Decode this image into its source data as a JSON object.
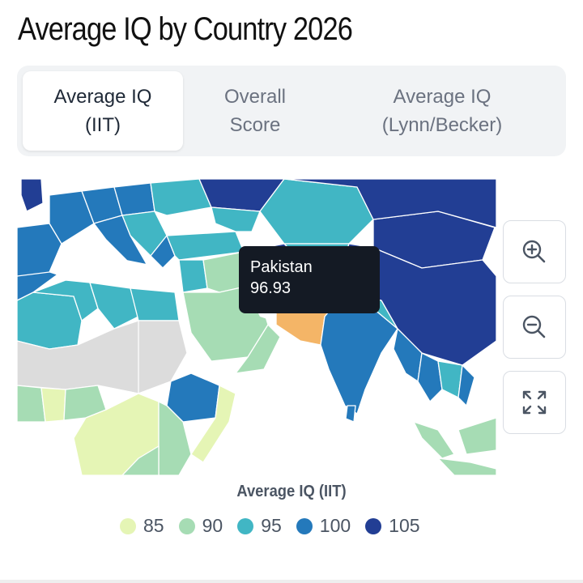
{
  "page": {
    "title": "Average IQ by Country 2026"
  },
  "tabs": [
    {
      "label": "Average IQ\n(IIT)",
      "active": true
    },
    {
      "label": "Overall\nScore",
      "active": false
    },
    {
      "label": "Average IQ\n(Lynn/Becker)",
      "active": false
    }
  ],
  "map": {
    "tooltip": {
      "country": "Pakistan",
      "value": "96.93"
    },
    "highlight_color": "#f4b567",
    "no_data_color": "#dcdcdc",
    "controls": [
      "zoom-in-icon",
      "zoom-out-icon",
      "fullscreen-icon"
    ]
  },
  "legend": {
    "title": "Average IQ (IIT)",
    "items": [
      {
        "label": "85",
        "color": "#e5f5b5"
      },
      {
        "label": "90",
        "color": "#a6dcb4"
      },
      {
        "label": "95",
        "color": "#41b6c4"
      },
      {
        "label": "100",
        "color": "#2479bb"
      },
      {
        "label": "105",
        "color": "#223e94"
      }
    ]
  }
}
